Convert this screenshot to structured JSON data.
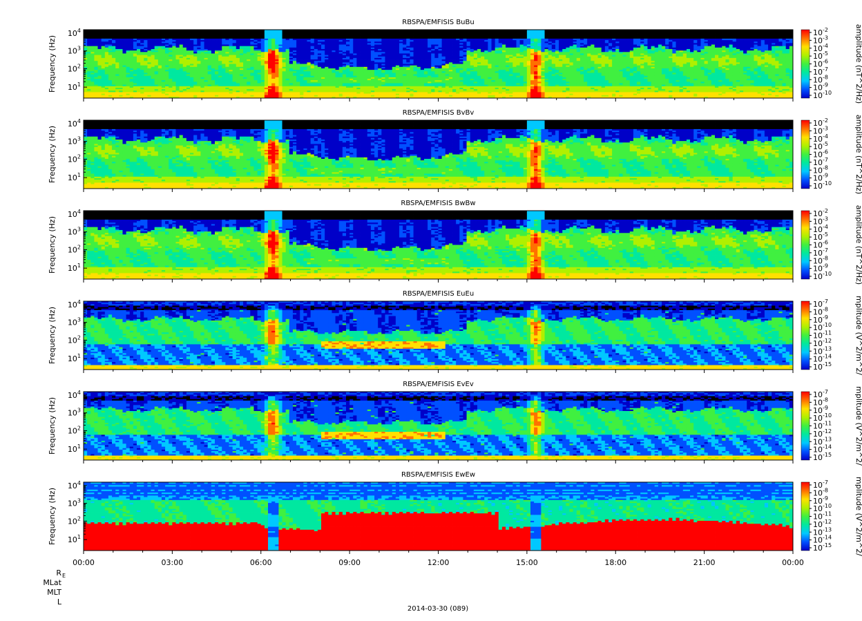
{
  "chart_data": {
    "type": "heatmap",
    "date_label": "2014-03-30 (089)",
    "x_ticks": [
      "00:00",
      "03:00",
      "06:00",
      "09:00",
      "12:00",
      "15:00",
      "18:00",
      "21:00",
      "00:00"
    ],
    "x_range_hours": [
      0,
      24
    ],
    "ephemeris_labels": [
      "R",
      "MLat",
      "MLT",
      "L"
    ],
    "ephemeris_subscript": "E",
    "panels": [
      {
        "title": "RBSPA/EMFISIS  BuBu",
        "component": "magnetic",
        "ylabel": "Frequency (Hz)",
        "y_scale": "log",
        "y_ticks": [
          {
            "base": "10",
            "exp": "1"
          },
          {
            "base": "10",
            "exp": "2"
          },
          {
            "base": "10",
            "exp": "3"
          },
          {
            "base": "10",
            "exp": "4"
          }
        ],
        "colorbar_label": "amplitude (nT^2/Hz)",
        "colorbar_ticks": [
          {
            "base": "10",
            "exp": "-2"
          },
          {
            "base": "10",
            "exp": "-3"
          },
          {
            "base": "10",
            "exp": "-4"
          },
          {
            "base": "10",
            "exp": "-5"
          },
          {
            "base": "10",
            "exp": "-6"
          },
          {
            "base": "10",
            "exp": "-7"
          },
          {
            "base": "10",
            "exp": "-8"
          },
          {
            "base": "10",
            "exp": "-9"
          },
          {
            "base": "10",
            "exp": "-10"
          }
        ]
      },
      {
        "title": "RBSPA/EMFISIS  BvBv",
        "component": "magnetic",
        "ylabel": "Frequency (Hz)",
        "y_scale": "log",
        "y_ticks": [
          {
            "base": "10",
            "exp": "1"
          },
          {
            "base": "10",
            "exp": "2"
          },
          {
            "base": "10",
            "exp": "3"
          },
          {
            "base": "10",
            "exp": "4"
          }
        ],
        "colorbar_label": "amplitude (nT^2/Hz)",
        "colorbar_ticks": [
          {
            "base": "10",
            "exp": "-2"
          },
          {
            "base": "10",
            "exp": "-3"
          },
          {
            "base": "10",
            "exp": "-4"
          },
          {
            "base": "10",
            "exp": "-5"
          },
          {
            "base": "10",
            "exp": "-6"
          },
          {
            "base": "10",
            "exp": "-7"
          },
          {
            "base": "10",
            "exp": "-8"
          },
          {
            "base": "10",
            "exp": "-9"
          },
          {
            "base": "10",
            "exp": "-10"
          }
        ]
      },
      {
        "title": "RBSPA/EMFISIS  BwBw",
        "component": "magnetic",
        "ylabel": "Frequency (Hz)",
        "y_scale": "log",
        "y_ticks": [
          {
            "base": "10",
            "exp": "1"
          },
          {
            "base": "10",
            "exp": "2"
          },
          {
            "base": "10",
            "exp": "3"
          },
          {
            "base": "10",
            "exp": "4"
          }
        ],
        "colorbar_label": "amplitude (nT^2/Hz)",
        "colorbar_ticks": [
          {
            "base": "10",
            "exp": "-2"
          },
          {
            "base": "10",
            "exp": "-3"
          },
          {
            "base": "10",
            "exp": "-4"
          },
          {
            "base": "10",
            "exp": "-5"
          },
          {
            "base": "10",
            "exp": "-6"
          },
          {
            "base": "10",
            "exp": "-7"
          },
          {
            "base": "10",
            "exp": "-8"
          },
          {
            "base": "10",
            "exp": "-9"
          },
          {
            "base": "10",
            "exp": "-10"
          }
        ]
      },
      {
        "title": "RBSPA/EMFISIS  EuEu",
        "component": "electric",
        "ylabel": "Frequency (Hz)",
        "y_scale": "log",
        "y_ticks": [
          {
            "base": "10",
            "exp": "1"
          },
          {
            "base": "10",
            "exp": "2"
          },
          {
            "base": "10",
            "exp": "3"
          },
          {
            "base": "10",
            "exp": "4"
          }
        ],
        "colorbar_label": "mplitude (V^2/m^2/",
        "colorbar_ticks": [
          {
            "base": "10",
            "exp": "-7"
          },
          {
            "base": "10",
            "exp": "-8"
          },
          {
            "base": "10",
            "exp": "-9"
          },
          {
            "base": "10",
            "exp": "-10"
          },
          {
            "base": "10",
            "exp": "-11"
          },
          {
            "base": "10",
            "exp": "-12"
          },
          {
            "base": "10",
            "exp": "-13"
          },
          {
            "base": "10",
            "exp": "-14"
          },
          {
            "base": "10",
            "exp": "-15"
          }
        ]
      },
      {
        "title": "RBSPA/EMFISIS  EvEv",
        "component": "electric",
        "ylabel": "Frequency (Hz)",
        "y_scale": "log",
        "y_ticks": [
          {
            "base": "10",
            "exp": "1"
          },
          {
            "base": "10",
            "exp": "2"
          },
          {
            "base": "10",
            "exp": "3"
          },
          {
            "base": "10",
            "exp": "4"
          }
        ],
        "colorbar_label": "mplitude (V^2/m^2/",
        "colorbar_ticks": [
          {
            "base": "10",
            "exp": "-7"
          },
          {
            "base": "10",
            "exp": "-8"
          },
          {
            "base": "10",
            "exp": "-9"
          },
          {
            "base": "10",
            "exp": "-10"
          },
          {
            "base": "10",
            "exp": "-11"
          },
          {
            "base": "10",
            "exp": "-12"
          },
          {
            "base": "10",
            "exp": "-13"
          },
          {
            "base": "10",
            "exp": "-14"
          },
          {
            "base": "10",
            "exp": "-15"
          }
        ]
      },
      {
        "title": "RBSPA/EMFISIS  EwEw",
        "component": "electric-w",
        "ylabel": "Frequency (Hz)",
        "y_scale": "log",
        "y_ticks": [
          {
            "base": "10",
            "exp": "1"
          },
          {
            "base": "10",
            "exp": "2"
          },
          {
            "base": "10",
            "exp": "3"
          },
          {
            "base": "10",
            "exp": "4"
          }
        ],
        "colorbar_label": "mplitude (V^2/m^2/",
        "colorbar_ticks": [
          {
            "base": "10",
            "exp": "-7"
          },
          {
            "base": "10",
            "exp": "-8"
          },
          {
            "base": "10",
            "exp": "-9"
          },
          {
            "base": "10",
            "exp": "-10"
          },
          {
            "base": "10",
            "exp": "-11"
          },
          {
            "base": "10",
            "exp": "-12"
          },
          {
            "base": "10",
            "exp": "-13"
          },
          {
            "base": "10",
            "exp": "-14"
          },
          {
            "base": "10",
            "exp": "-15"
          }
        ]
      }
    ],
    "colormap": [
      "#000000",
      "#0000c8",
      "#0050ff",
      "#00c8ff",
      "#00e8a0",
      "#40f040",
      "#b0f000",
      "#ffe000",
      "#ff7000",
      "#ff0000"
    ]
  }
}
